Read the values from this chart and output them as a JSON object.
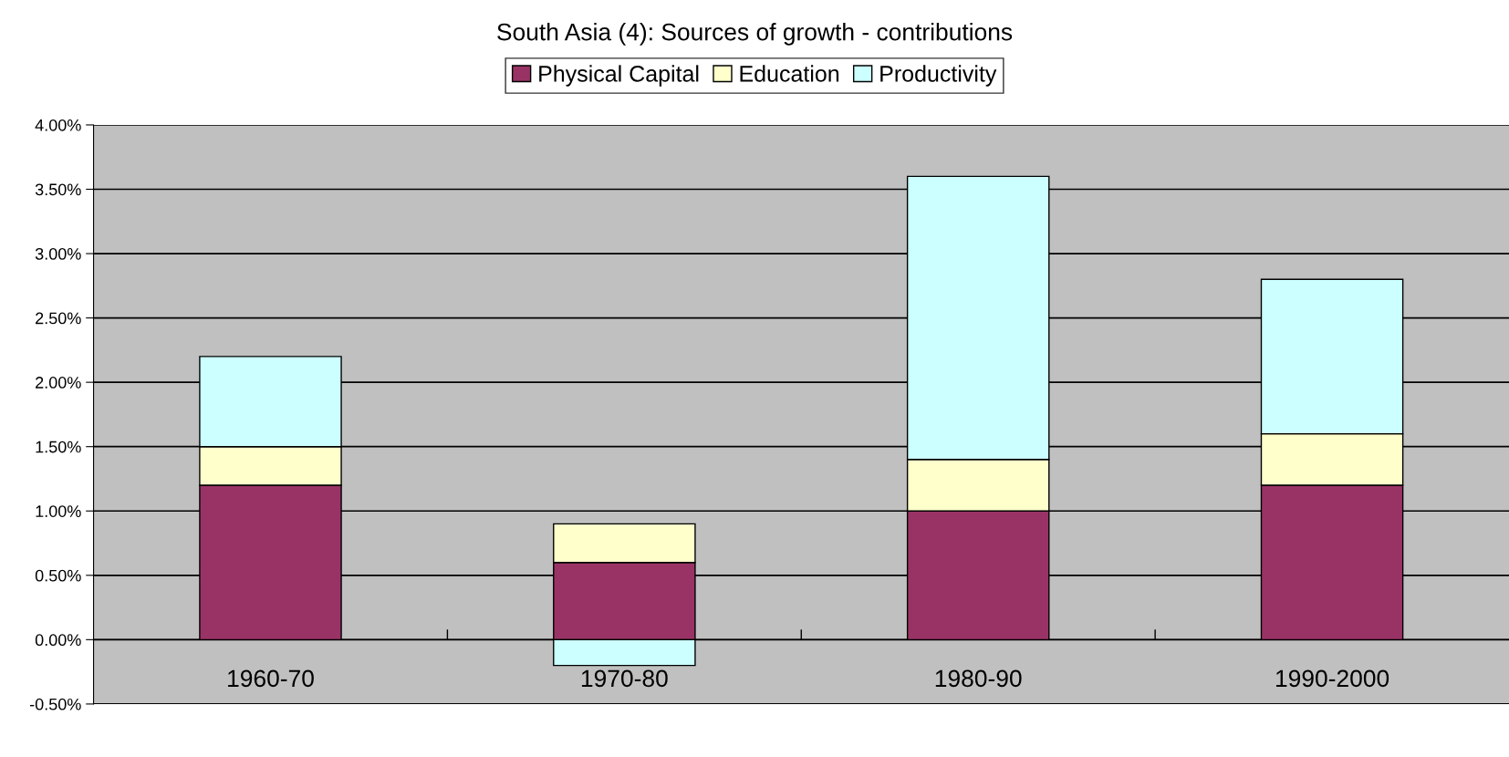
{
  "chart_data": {
    "type": "bar",
    "title": "South Asia (4): Sources of growth - contributions",
    "categories": [
      "1960-70",
      "1970-80",
      "1980-90",
      "1990-2000"
    ],
    "stacked": true,
    "series": [
      {
        "name": "Physical Capital",
        "color": "#993366",
        "values": [
          1.2,
          0.6,
          1.0,
          1.2
        ]
      },
      {
        "name": "Education",
        "color": "#ffffcc",
        "values": [
          0.3,
          0.3,
          0.4,
          0.4
        ]
      },
      {
        "name": "Productivity",
        "color": "#ccffff",
        "values": [
          0.7,
          -0.2,
          2.2,
          1.2
        ]
      }
    ],
    "ylim": [
      -0.5,
      4
    ],
    "yticks": [
      {
        "value": -0.5,
        "label": "-0.50%"
      },
      {
        "value": 0,
        "label": "0.00%"
      },
      {
        "value": 0.5,
        "label": "0.50%"
      },
      {
        "value": 1,
        "label": "1.00%"
      },
      {
        "value": 1.5,
        "label": "1.50%"
      },
      {
        "value": 2,
        "label": "2.00%"
      },
      {
        "value": 2.5,
        "label": "2.50%"
      },
      {
        "value": 3,
        "label": "3.00%"
      },
      {
        "value": 3.5,
        "label": "3.50%"
      },
      {
        "value": 4,
        "label": "4.00%"
      }
    ],
    "grid": "y",
    "legend": "top"
  }
}
